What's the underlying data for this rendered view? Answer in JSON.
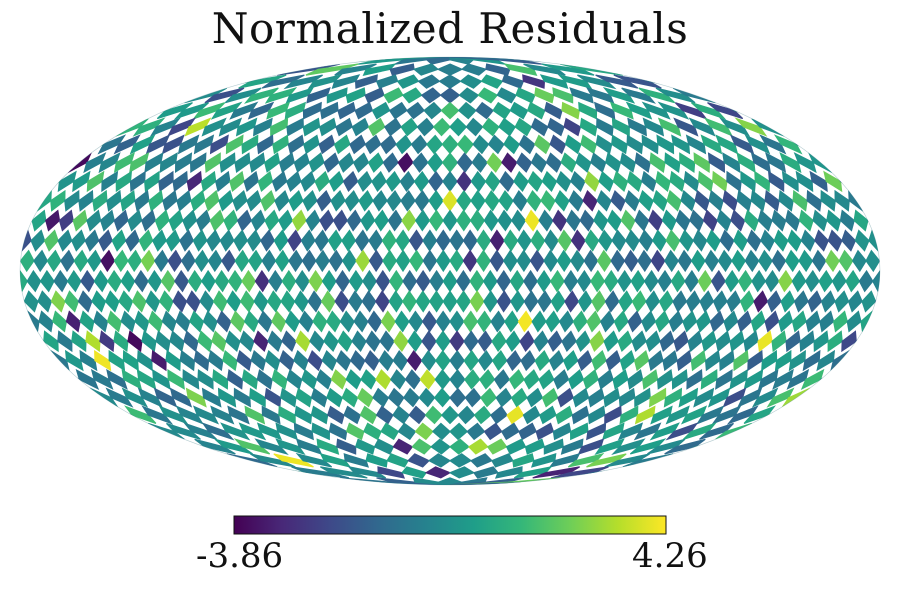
{
  "chart_data": {
    "type": "heatmap",
    "projection": "mollweide",
    "title": "Normalized Residuals",
    "colormap": "viridis",
    "colormap_stops": [
      "#440154",
      "#482878",
      "#3e4989",
      "#31688e",
      "#26828e",
      "#1f9e89",
      "#35b779",
      "#6ece58",
      "#b5de2b",
      "#fde725"
    ],
    "vmin": -3.86,
    "vmax": 4.26,
    "colorbar_labels": [
      "-3.86",
      "4.26"
    ],
    "distribution": "noise, approximately centered near 0",
    "pixelization": "HEALPix-like diamond cells, finer near equator and converging at the poles"
  }
}
